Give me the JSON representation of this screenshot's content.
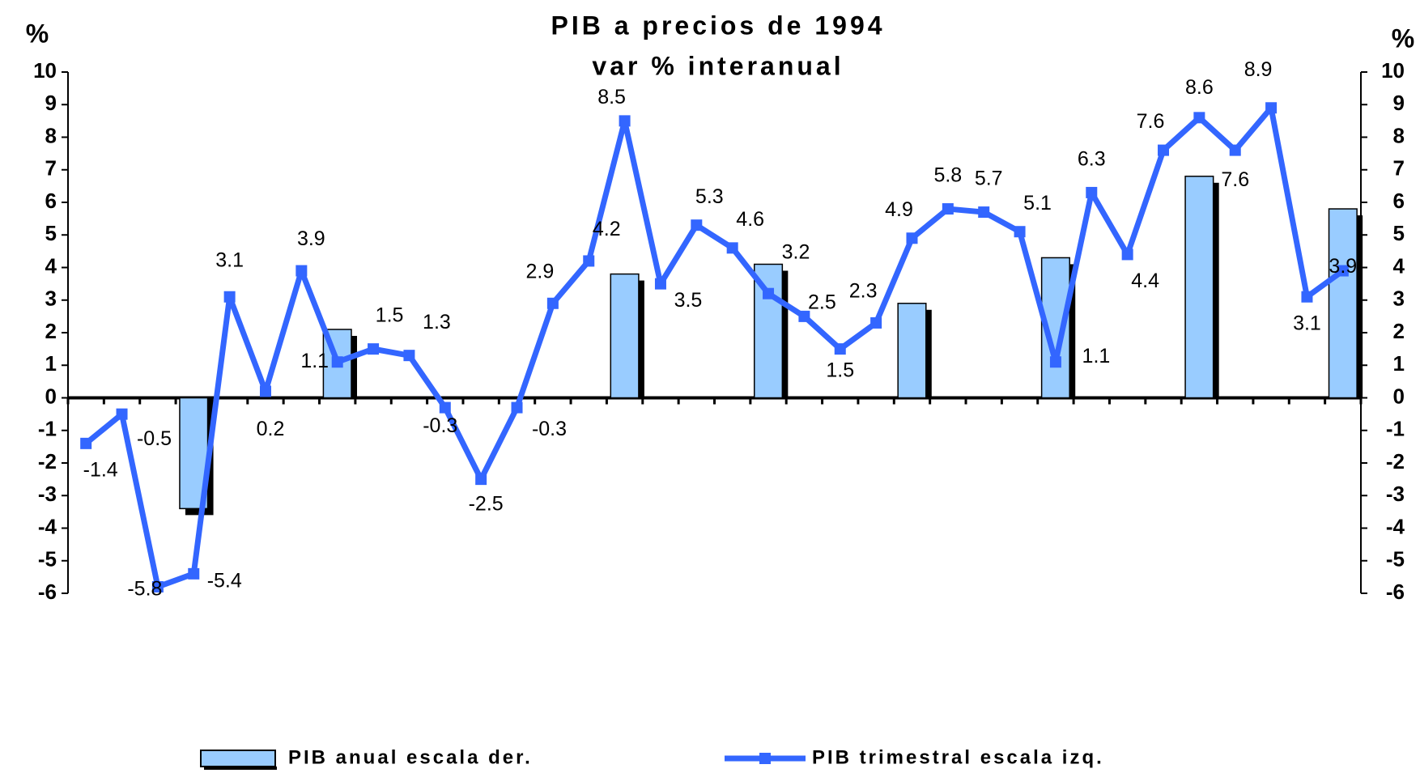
{
  "chart_data": {
    "type": "bar-line",
    "title": "PIB a precios de 1994",
    "subtitle": "var % interanual",
    "ylabel": "%",
    "y2label": "%",
    "categories": [
      null,
      null,
      null,
      null,
      null,
      null,
      null,
      null,
      null,
      null,
      null,
      null,
      null,
      null,
      null,
      null,
      null,
      null,
      null,
      null,
      null,
      null,
      null,
      null,
      null,
      null,
      null,
      null,
      null,
      null,
      null,
      null,
      null,
      null,
      null,
      null
    ],
    "series": [
      {
        "name": "PIB anual escala der.",
        "type": "bar",
        "axis": "y2",
        "color": "#99ccff",
        "values": [
          null,
          null,
          null,
          -3.4,
          null,
          null,
          null,
          2.1,
          null,
          null,
          null,
          null,
          null,
          null,
          null,
          3.8,
          null,
          null,
          null,
          4.1,
          null,
          null,
          null,
          2.9,
          null,
          null,
          null,
          4.3,
          null,
          null,
          null,
          6.8,
          null,
          null,
          null,
          5.8
        ]
      },
      {
        "name": "PIB trimestral escala izq.",
        "type": "line",
        "axis": "y",
        "color": "#3366ff",
        "values": [
          -1.4,
          -0.5,
          -5.8,
          -5.4,
          3.1,
          0.2,
          3.9,
          1.1,
          1.5,
          1.3,
          -0.3,
          -2.5,
          -0.3,
          2.9,
          4.2,
          8.5,
          3.5,
          5.3,
          4.6,
          3.2,
          2.5,
          1.5,
          2.3,
          4.9,
          5.8,
          5.7,
          5.1,
          1.1,
          6.3,
          4.4,
          7.6,
          8.6,
          7.6,
          8.9,
          3.1,
          3.9
        ]
      }
    ],
    "ylim": [
      -6,
      10
    ],
    "yticks": [
      -6,
      -5,
      -4,
      -3,
      -2,
      -1,
      0,
      1,
      2,
      3,
      4,
      5,
      6,
      7,
      8,
      9,
      10
    ],
    "y2lim": [
      -6,
      10
    ],
    "y2ticks": [
      -6,
      -5,
      -4,
      -3,
      -2,
      -1,
      0,
      1,
      2,
      3,
      4,
      5,
      6,
      7,
      8,
      9,
      10
    ],
    "data_labels": true,
    "legend": "bottom"
  }
}
